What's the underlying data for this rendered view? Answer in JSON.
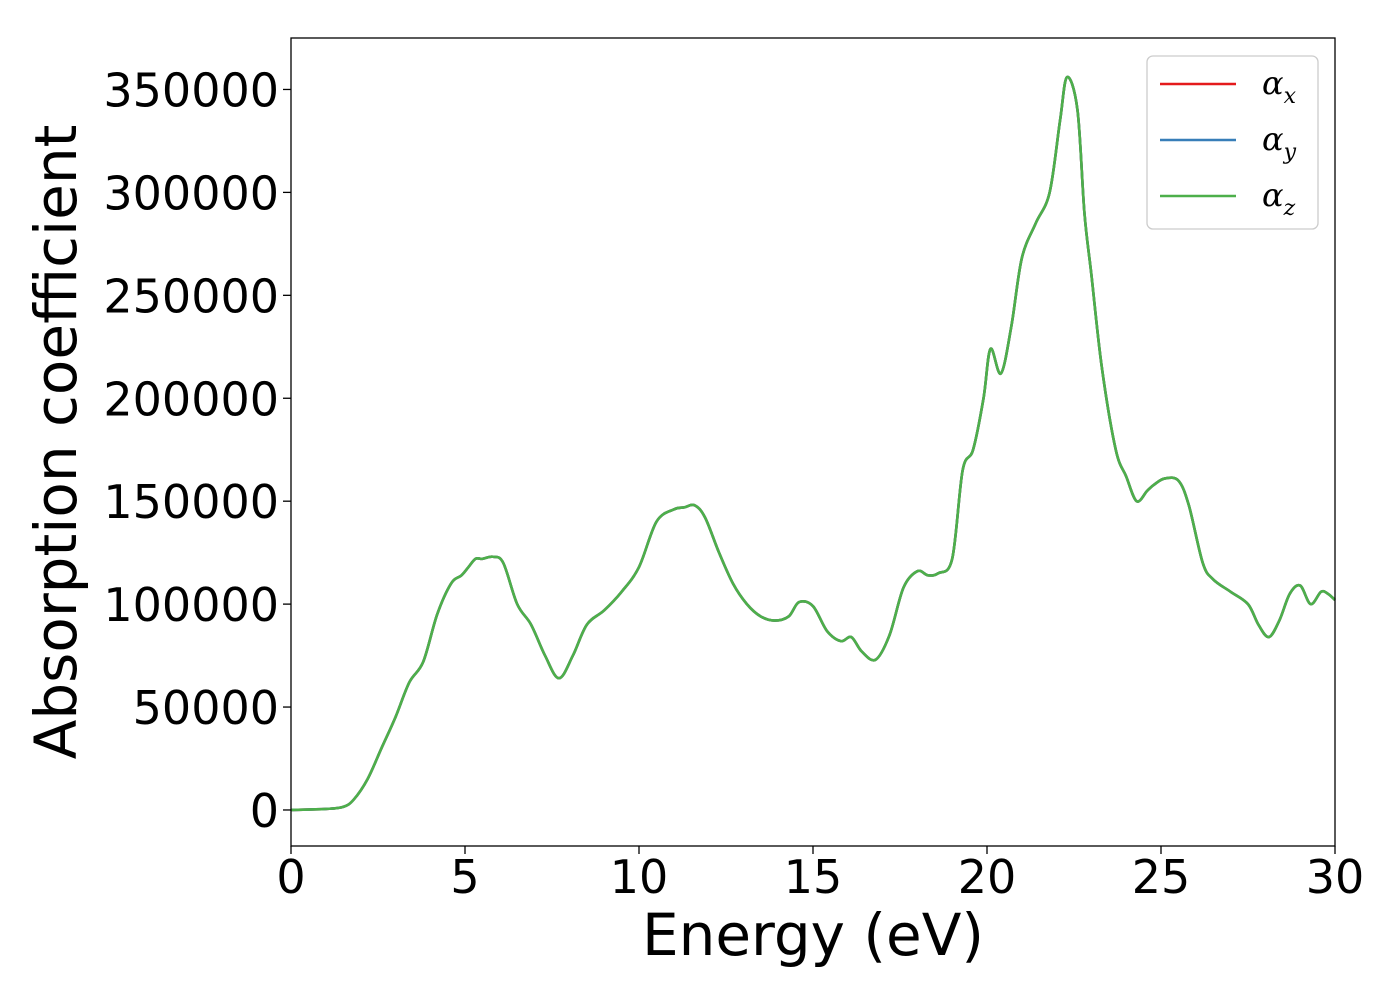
{
  "chart_data": {
    "type": "line",
    "xlabel": "Energy (eV)",
    "ylabel": "Absorption coefficient",
    "xlim": [
      0,
      30
    ],
    "ylim": [
      -17500,
      375000
    ],
    "x_ticks": [
      "0",
      "5",
      "10",
      "15",
      "20",
      "25",
      "30"
    ],
    "y_ticks": [
      "0",
      "50000",
      "100000",
      "150000",
      "200000",
      "250000",
      "300000",
      "350000"
    ],
    "grid": false,
    "legend_position": "top-right",
    "series": [
      {
        "name": "α",
        "subscript": "x",
        "color": "#e41a1c"
      },
      {
        "name": "α",
        "subscript": "y",
        "color": "#377eb8"
      },
      {
        "name": "α",
        "subscript": "z",
        "color": "#4daf4a"
      }
    ],
    "x": [
      0,
      1.0,
      1.5,
      1.8,
      2.2,
      2.6,
      3.0,
      3.4,
      3.8,
      4.2,
      4.6,
      4.9,
      5.1,
      5.3,
      5.5,
      5.8,
      6.1,
      6.5,
      6.9,
      7.3,
      7.7,
      8.1,
      8.5,
      9.0,
      9.5,
      10.0,
      10.5,
      11.0,
      11.3,
      11.6,
      11.9,
      12.3,
      12.7,
      13.1,
      13.5,
      13.9,
      14.3,
      14.6,
      15.0,
      15.4,
      15.8,
      16.1,
      16.4,
      16.8,
      17.2,
      17.6,
      18.0,
      18.3,
      18.6,
      19.0,
      19.3,
      19.6,
      19.9,
      20.1,
      20.4,
      20.7,
      21.0,
      21.4,
      21.8,
      22.1,
      22.3,
      22.6,
      22.8,
      23.0,
      23.3,
      23.7,
      24.0,
      24.3,
      24.6,
      24.8,
      25.1,
      25.5,
      25.8,
      26.2,
      26.5,
      27.0,
      27.5,
      27.8,
      28.1,
      28.4,
      28.7,
      29.0,
      29.3,
      29.6,
      29.8,
      30.0
    ],
    "y": [
      0,
      500,
      1500,
      5000,
      15000,
      30000,
      45000,
      62000,
      72000,
      95000,
      110000,
      114000,
      118000,
      122000,
      122000,
      123000,
      120000,
      100000,
      90000,
      75000,
      64000,
      75000,
      90000,
      97000,
      106000,
      118000,
      140000,
      146000,
      147000,
      148000,
      142000,
      125000,
      110000,
      100000,
      94000,
      92000,
      94000,
      101000,
      99000,
      87000,
      82000,
      84000,
      77000,
      73000,
      85000,
      108000,
      116000,
      114000,
      115000,
      122000,
      165000,
      175000,
      200000,
      224000,
      212000,
      235000,
      268000,
      285000,
      300000,
      335000,
      356000,
      340000,
      290000,
      260000,
      215000,
      175000,
      162000,
      150000,
      155000,
      158000,
      161000,
      160000,
      148000,
      120000,
      112000,
      106000,
      100000,
      90000,
      84000,
      92000,
      105000,
      109000,
      100000,
      106000,
      105000,
      102000
    ]
  }
}
